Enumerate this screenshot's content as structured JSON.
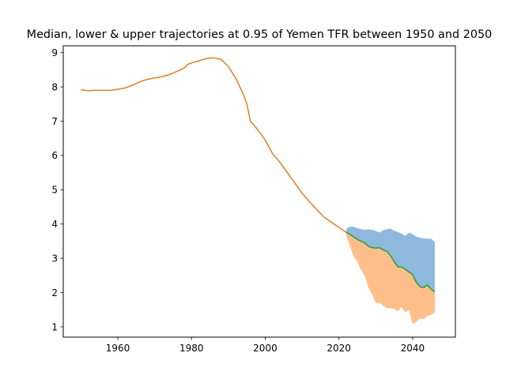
{
  "chart_data": {
    "type": "area",
    "title": "Median, lower & upper trajectories at 0.95 of Yemen TFR between 1950 and 2050",
    "xlabel": "",
    "ylabel": "",
    "xlim": [
      1945.2,
      2051.6
    ],
    "ylim": [
      0.7,
      9.2
    ],
    "xticks": [
      1960,
      1980,
      2000,
      2020,
      2040
    ],
    "yticks": [
      1,
      2,
      3,
      4,
      5,
      6,
      7,
      8,
      9
    ],
    "grid": false,
    "legend": "none",
    "colors": {
      "upper_fill": "#8fb9dc",
      "lower_fill": "#ffbe8a",
      "median": "#2ca02c",
      "history": "#e07d28"
    },
    "series": [
      {
        "role": "history",
        "x": [
          1950,
          1952,
          1954,
          1956,
          1958,
          1960,
          1962,
          1964,
          1966,
          1968,
          1970,
          1972,
          1974,
          1976,
          1978,
          1979,
          1980,
          1982,
          1984,
          1986,
          1988,
          1990,
          1992,
          1994,
          1995,
          1996,
          1998,
          2000,
          2002,
          2004,
          2006,
          2008,
          2010,
          2012,
          2014,
          2016,
          2018,
          2020,
          2022
        ],
        "y": [
          7.92,
          7.89,
          7.9,
          7.9,
          7.9,
          7.93,
          7.97,
          8.05,
          8.15,
          8.22,
          8.26,
          8.3,
          8.36,
          8.45,
          8.55,
          8.66,
          8.7,
          8.76,
          8.83,
          8.85,
          8.8,
          8.6,
          8.25,
          7.8,
          7.5,
          7.0,
          6.75,
          6.45,
          6.05,
          5.8,
          5.5,
          5.2,
          4.9,
          4.65,
          4.42,
          4.2,
          4.05,
          3.9,
          3.76
        ]
      },
      {
        "role": "median",
        "x": [
          2022,
          2023,
          2024,
          2025,
          2026,
          2027,
          2028,
          2029,
          2030,
          2031,
          2032,
          2033,
          2034,
          2035,
          2036,
          2037,
          2038,
          2039,
          2040,
          2041,
          2042,
          2043,
          2044,
          2045,
          2046
        ],
        "y": [
          3.76,
          3.7,
          3.62,
          3.55,
          3.5,
          3.45,
          3.35,
          3.31,
          3.3,
          3.31,
          3.25,
          3.2,
          3.08,
          2.9,
          2.75,
          2.75,
          2.68,
          2.6,
          2.52,
          2.3,
          2.17,
          2.15,
          2.22,
          2.1,
          2.02
        ]
      },
      {
        "role": "upper",
        "x": [
          2022,
          2023,
          2024,
          2025,
          2026,
          2027,
          2028,
          2029,
          2030,
          2031,
          2032,
          2033,
          2034,
          2035,
          2036,
          2037,
          2038,
          2039,
          2040,
          2041,
          2042,
          2043,
          2044,
          2045,
          2046
        ],
        "y": [
          3.85,
          3.93,
          3.92,
          3.88,
          3.85,
          3.83,
          3.85,
          3.83,
          3.8,
          3.75,
          3.82,
          3.85,
          3.87,
          3.8,
          3.77,
          3.72,
          3.65,
          3.75,
          3.7,
          3.63,
          3.6,
          3.58,
          3.57,
          3.57,
          3.48
        ]
      },
      {
        "role": "lower",
        "x": [
          2022,
          2023,
          2024,
          2025,
          2026,
          2027,
          2028,
          2029,
          2030,
          2031,
          2032,
          2033,
          2034,
          2035,
          2036,
          2037,
          2038,
          2039,
          2040,
          2041,
          2042,
          2043,
          2044,
          2045,
          2046
        ],
        "y": [
          3.65,
          3.35,
          3.05,
          2.9,
          2.65,
          2.5,
          2.15,
          1.95,
          1.7,
          1.7,
          1.62,
          1.55,
          1.55,
          1.52,
          1.45,
          1.58,
          1.42,
          1.5,
          1.08,
          1.15,
          1.25,
          1.22,
          1.32,
          1.35,
          1.42
        ]
      }
    ]
  }
}
